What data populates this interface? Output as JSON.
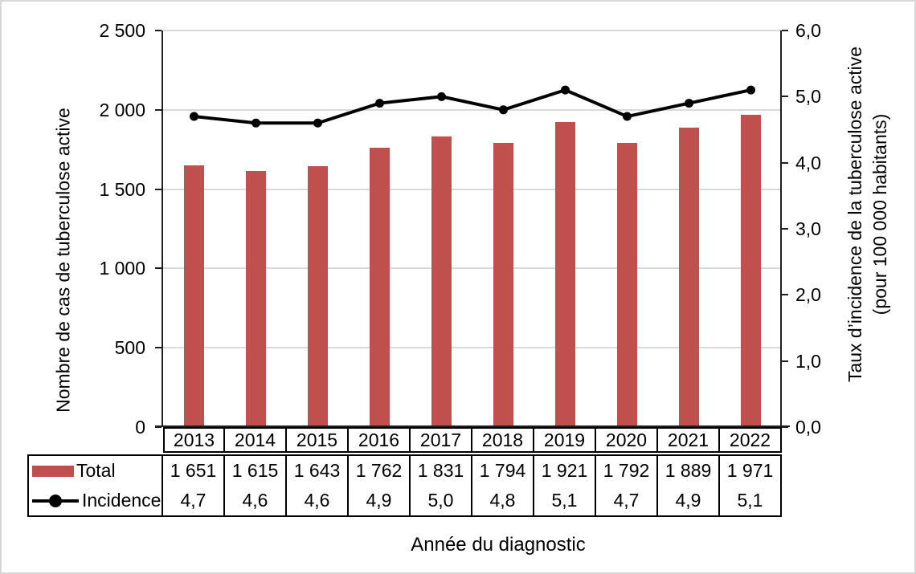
{
  "chart_data": {
    "type": "bar+line",
    "categories": [
      "2013",
      "2014",
      "2015",
      "2016",
      "2017",
      "2018",
      "2019",
      "2020",
      "2021",
      "2022"
    ],
    "series": [
      {
        "name": "Total",
        "type": "bar",
        "axis": "left",
        "color": "#c0504d",
        "values": [
          1651,
          1615,
          1643,
          1762,
          1831,
          1794,
          1921,
          1792,
          1889,
          1971
        ],
        "labels": [
          "1 651",
          "1 615",
          "1 643",
          "1 762",
          "1 831",
          "1 794",
          "1 921",
          "1 792",
          "1 889",
          "1 971"
        ]
      },
      {
        "name": "Incidence",
        "type": "line",
        "axis": "right",
        "color": "#000000",
        "values": [
          4.7,
          4.6,
          4.6,
          4.9,
          5.0,
          4.8,
          5.1,
          4.7,
          4.9,
          5.1
        ],
        "labels": [
          "4,7",
          "4,6",
          "4,6",
          "4,9",
          "5,0",
          "4,8",
          "5,1",
          "4,7",
          "4,9",
          "5,1"
        ]
      }
    ],
    "left_axis": {
      "title": "Nombre de cas de tuberculose active",
      "min": 0,
      "max": 2500,
      "tick_values": [
        0,
        500,
        1000,
        1500,
        2000,
        2500
      ],
      "tick_labels": [
        "0",
        "500",
        "1 000",
        "1 500",
        "2 000",
        "2 500"
      ]
    },
    "right_axis": {
      "title_line1": "Taux d’incidence de la tuberculose active",
      "title_line2": "(pour 100 000 habitants)",
      "min": 0,
      "max": 6,
      "tick_values": [
        0,
        1,
        2,
        3,
        4,
        5,
        6
      ],
      "tick_labels": [
        "0,0",
        "1,0",
        "2,0",
        "3,0",
        "4,0",
        "5,0",
        "6,0"
      ]
    },
    "x_axis": {
      "title": "Année du diagnostic"
    },
    "grid": true,
    "legend_position": "table-left"
  },
  "style": {
    "bar_color": "#c0504d",
    "line_color": "#000000",
    "gridline_color": "#d9d9d9",
    "axis_color": "#1f1f1f",
    "table_border_color": "#000000",
    "background": "#ffffff"
  }
}
